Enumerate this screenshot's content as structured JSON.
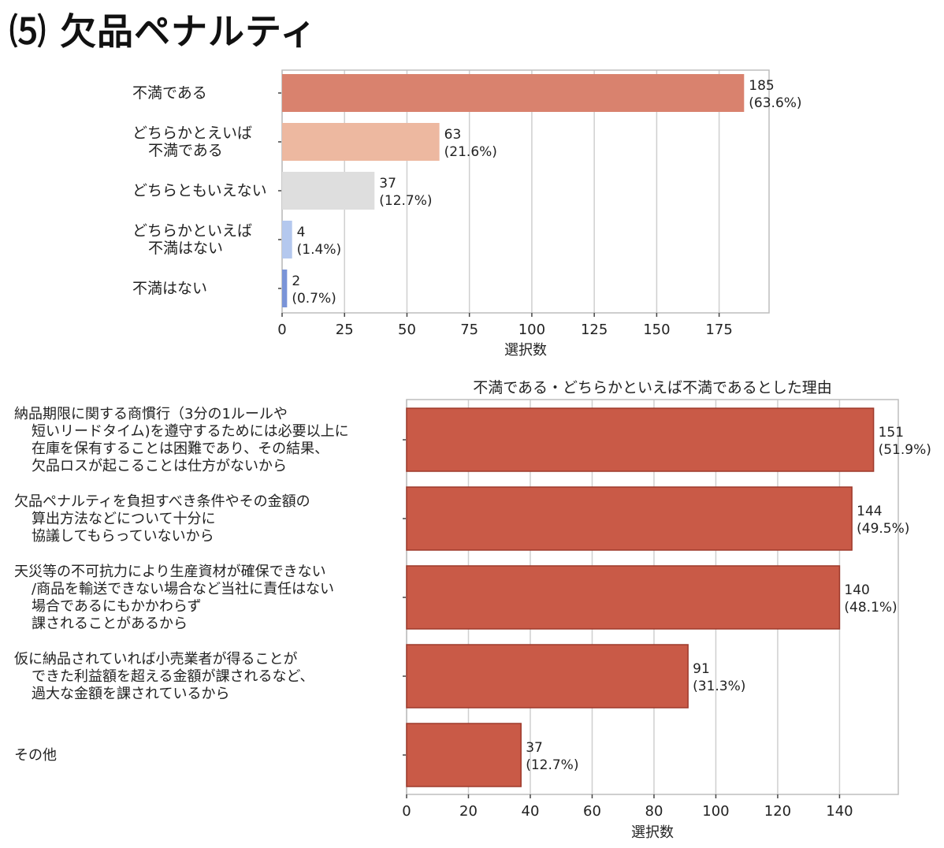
{
  "page": {
    "title": "⑸  欠品ペナルティ"
  },
  "chart_data": [
    {
      "type": "bar",
      "orientation": "horizontal",
      "title": "",
      "xlabel": "選択数",
      "xlim": [
        0,
        195
      ],
      "xticks": [
        0,
        25,
        50,
        75,
        100,
        125,
        150,
        175
      ],
      "grid": true,
      "categories": [
        [
          "不満である"
        ],
        [
          "どちらかとえいば",
          "不満である"
        ],
        [
          "どちらともいえない"
        ],
        [
          "どちらかといえば",
          "不満はない"
        ],
        [
          "不満はない"
        ]
      ],
      "values": [
        185,
        63,
        37,
        4,
        2
      ],
      "percent_labels": [
        "(63.6%)",
        "(21.6%)",
        "(12.7%)",
        "(1.4%)",
        "(0.7%)"
      ],
      "colors": [
        "#d9826e",
        "#edb8a0",
        "#dedede",
        "#b4c8ee",
        "#7a94d8"
      ]
    },
    {
      "type": "bar",
      "orientation": "horizontal",
      "title": "不満である・どちらかといえば不満であるとした理由",
      "xlabel": "選択数",
      "xlim": [
        0,
        159
      ],
      "xticks": [
        0,
        20,
        40,
        60,
        80,
        100,
        120,
        140
      ],
      "grid": true,
      "categories": [
        [
          "納品期限に関する商慣行（3分の1ルールや",
          "短いリードタイム)を遵守するためには必要以上に",
          "在庫を保有することは困難であり、その結果、",
          "欠品ロスが起こることは仕方がないから"
        ],
        [
          "欠品ペナルティを負担すべき条件やその金額の",
          "算出方法などについて十分に",
          "協議してもらっていないから"
        ],
        [
          "天災等の不可抗力により生産資材が確保できない",
          "/商品を輸送できない場合など当社に責任はない",
          "場合であるにもかかわらず",
          "課されることがあるから"
        ],
        [
          "仮に納品されていれば小売業者が得ることが",
          "できた利益額を超える金額が課されるなど、",
          "過大な金額を課されているから"
        ],
        [
          "その他"
        ]
      ],
      "values": [
        151,
        144,
        140,
        91,
        37
      ],
      "percent_labels": [
        "(51.9%)",
        "(49.5%)",
        "(48.1%)",
        "(31.3%)",
        "(12.7%)"
      ],
      "colors": [
        "#c95a47",
        "#c95a47",
        "#c95a47",
        "#c95a47",
        "#c95a47"
      ]
    }
  ]
}
